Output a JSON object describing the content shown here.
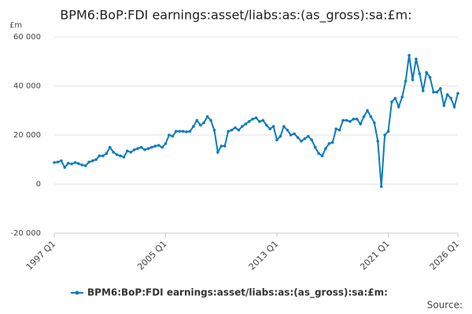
{
  "chart_data": {
    "type": "line",
    "title": "BPM6:BoP:FDI earnings:asset/liabs:as:(as_gross):sa:£m:",
    "y_label": "£m",
    "source": "Source:",
    "categories": [
      "1997 Q1",
      null,
      null,
      null,
      null,
      null,
      null,
      null,
      null,
      null,
      null,
      null,
      null,
      null,
      null,
      null,
      null,
      null,
      null,
      null,
      null,
      null,
      null,
      null,
      null,
      null,
      null,
      null,
      null,
      null,
      null,
      null,
      "2005 Q1",
      null,
      null,
      null,
      null,
      null,
      null,
      null,
      null,
      null,
      null,
      null,
      null,
      null,
      null,
      null,
      null,
      null,
      null,
      null,
      null,
      null,
      null,
      null,
      null,
      null,
      null,
      null,
      null,
      null,
      null,
      null,
      "2013 Q1",
      null,
      null,
      null,
      null,
      null,
      null,
      null,
      null,
      null,
      null,
      null,
      null,
      null,
      null,
      null,
      null,
      null,
      null,
      null,
      null,
      null,
      null,
      null,
      null,
      null,
      null,
      null,
      null,
      null,
      null,
      null,
      "2021 Q1",
      null,
      null,
      null,
      null,
      null,
      null,
      null,
      null,
      null,
      null,
      null,
      null,
      null,
      null,
      null,
      null,
      null,
      null,
      null,
      "2026 Q1"
    ],
    "series": [
      {
        "name": "BPM6:BoP:FDI earnings:asset/liabs:as:(as_gross):sa:£m:",
        "color": "#0e7bbd",
        "values": [
          8800,
          9000,
          9500,
          6800,
          8500,
          8200,
          8800,
          8300,
          7800,
          7500,
          9000,
          9500,
          10000,
          11500,
          11500,
          12500,
          15000,
          13000,
          12000,
          11500,
          11000,
          13500,
          13000,
          14000,
          14500,
          15000,
          14000,
          14500,
          15000,
          15500,
          15800,
          15000,
          16500,
          20000,
          19500,
          21500,
          21500,
          21500,
          21300,
          21500,
          23500,
          26000,
          24000,
          25000,
          27500,
          26000,
          22000,
          13000,
          15500,
          15500,
          21500,
          22000,
          23000,
          22000,
          23500,
          24500,
          25500,
          26500,
          27000,
          25500,
          26000,
          24000,
          22500,
          23500,
          18000,
          19500,
          23500,
          22000,
          20000,
          20500,
          19000,
          17500,
          18500,
          19500,
          18000,
          15000,
          12500,
          11500,
          14500,
          16500,
          17000,
          22500,
          22000,
          26000,
          26000,
          25500,
          26500,
          26500,
          24500,
          27500,
          30000,
          27500,
          25000,
          17500,
          -1000,
          20000,
          21500,
          33500,
          35000,
          31500,
          35500,
          42000,
          52500,
          42500,
          51000,
          45000,
          38000,
          45500,
          43500,
          37500,
          37500,
          39000,
          32000,
          36500,
          35000,
          31500,
          37000
        ]
      }
    ],
    "ylim": [
      -20000,
      60000
    ],
    "yticks": [
      {
        "value": -20000,
        "label": "-20 000"
      },
      0,
      {
        "value": 20000,
        "label": "20 000"
      },
      {
        "value": 40000,
        "label": "40 000"
      },
      {
        "value": 60000,
        "label": "60 000"
      }
    ],
    "grid": true
  }
}
